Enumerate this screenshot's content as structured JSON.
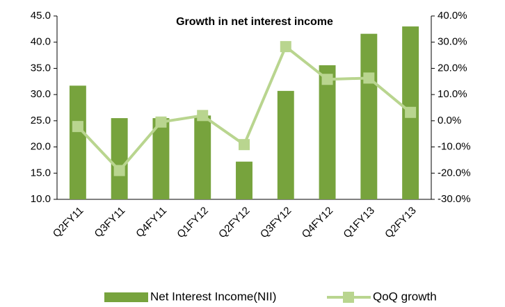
{
  "chart_data": {
    "type": "bar-line",
    "title": "Growth in  net interest income",
    "categories": [
      "Q2FY11",
      "Q3FY11",
      "Q4FY11",
      "Q1FY12",
      "Q2FY12",
      "Q3FY12",
      "Q4FY12",
      "Q1FY13",
      "Q2FY13"
    ],
    "series": [
      {
        "name": "Net Interest Income(NII)",
        "type": "bar",
        "color": "#77a33d",
        "values": [
          31.7,
          25.5,
          25.5,
          26.0,
          17.2,
          30.7,
          35.6,
          41.6,
          43.0
        ]
      },
      {
        "name": "QoQ growth",
        "type": "line",
        "axis": "y2",
        "color": "#b9d58f",
        "values": [
          -2.2,
          -19.0,
          -0.5,
          2.0,
          -9.1,
          28.3,
          15.8,
          16.3,
          3.2
        ]
      }
    ],
    "ylim": [
      10,
      45
    ],
    "yticks": [
      {
        "value": 10,
        "label": "10.0"
      },
      {
        "value": 15,
        "label": "15.0"
      },
      {
        "value": 20,
        "label": "20.0"
      },
      {
        "value": 25,
        "label": "25.0"
      },
      {
        "value": 30,
        "label": "30.0"
      },
      {
        "value": 35,
        "label": "35.0"
      },
      {
        "value": 40,
        "label": "40.0"
      },
      {
        "value": 45,
        "label": "45.0"
      }
    ],
    "y2lim": [
      -30,
      40
    ],
    "y2ticks": [
      {
        "value": -30,
        "label": "-30.0%"
      },
      {
        "value": -20,
        "label": "-20.0%"
      },
      {
        "value": -10,
        "label": "-10.0%"
      },
      {
        "value": 0,
        "label": "0.0%"
      },
      {
        "value": 10,
        "label": "10.0%"
      },
      {
        "value": 20,
        "label": "20.0%"
      },
      {
        "value": 30,
        "label": "30.0%"
      },
      {
        "value": 40,
        "label": "40.0%"
      }
    ],
    "grid": false
  }
}
